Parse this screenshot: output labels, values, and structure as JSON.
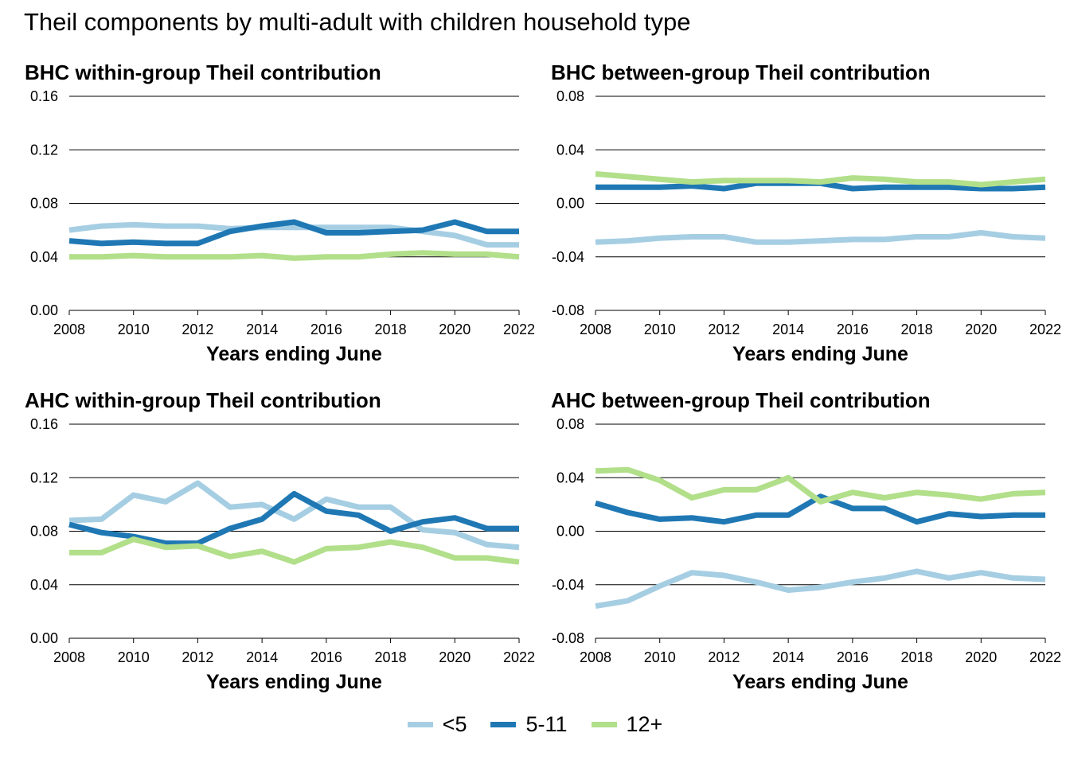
{
  "title": "Theil components by multi-adult with children household type",
  "colors": {
    "lt5": "#a6cee3",
    "5to11": "#1f78b4",
    "12plus": "#b2df8a"
  },
  "legend": [
    {
      "label": "<5",
      "color": "#a6cee3"
    },
    {
      "label": "5-11",
      "color": "#1f78b4"
    },
    {
      "label": "12+",
      "color": "#b2df8a"
    }
  ],
  "chart_data": [
    {
      "type": "line",
      "title": "BHC within-group Theil contribution",
      "xlabel": "Years ending June",
      "ylabel": "",
      "x": [
        2008,
        2009,
        2010,
        2011,
        2012,
        2013,
        2014,
        2015,
        2016,
        2017,
        2018,
        2019,
        2020,
        2021,
        2022
      ],
      "xticks": [
        "2008",
        "2010",
        "2012",
        "2014",
        "2016",
        "2018",
        "2020",
        "2022"
      ],
      "ylim": [
        0,
        0.16
      ],
      "yticks": [
        "0.00",
        "0.04",
        "0.08",
        "0.12",
        "0.16"
      ],
      "grid": "horizontal",
      "series": [
        {
          "name": "<5",
          "values": [
            0.06,
            0.063,
            0.064,
            0.063,
            0.063,
            0.061,
            0.062,
            0.062,
            0.062,
            0.062,
            0.062,
            0.059,
            0.056,
            0.049,
            0.049
          ]
        },
        {
          "name": "5-11",
          "values": [
            0.052,
            0.05,
            0.051,
            0.05,
            0.05,
            0.059,
            0.063,
            0.066,
            0.058,
            0.058,
            0.059,
            0.06,
            0.066,
            0.059,
            0.059
          ]
        },
        {
          "name": "12+",
          "values": [
            0.04,
            0.04,
            0.041,
            0.04,
            0.04,
            0.04,
            0.041,
            0.039,
            0.04,
            0.04,
            0.042,
            0.043,
            0.042,
            0.042,
            0.04
          ]
        }
      ]
    },
    {
      "type": "line",
      "title": "BHC between-group Theil contribution",
      "xlabel": "Years ending June",
      "ylabel": "",
      "x": [
        2008,
        2009,
        2010,
        2011,
        2012,
        2013,
        2014,
        2015,
        2016,
        2017,
        2018,
        2019,
        2020,
        2021,
        2022
      ],
      "xticks": [
        "2008",
        "2010",
        "2012",
        "2014",
        "2016",
        "2018",
        "2020",
        "2022"
      ],
      "ylim": [
        -0.08,
        0.08
      ],
      "yticks": [
        "-0.08",
        "-0.04",
        "0.00",
        "0.04",
        "0.08"
      ],
      "grid": "horizontal",
      "series": [
        {
          "name": "<5",
          "values": [
            -0.029,
            -0.028,
            -0.026,
            -0.025,
            -0.025,
            -0.029,
            -0.029,
            -0.028,
            -0.027,
            -0.027,
            -0.025,
            -0.025,
            -0.022,
            -0.025,
            -0.026
          ]
        },
        {
          "name": "5-11",
          "values": [
            0.012,
            0.012,
            0.012,
            0.013,
            0.011,
            0.015,
            0.015,
            0.015,
            0.011,
            0.012,
            0.012,
            0.012,
            0.011,
            0.011,
            0.012
          ]
        },
        {
          "name": "12+",
          "values": [
            0.022,
            0.02,
            0.018,
            0.016,
            0.017,
            0.017,
            0.017,
            0.016,
            0.019,
            0.018,
            0.016,
            0.016,
            0.014,
            0.016,
            0.018
          ]
        }
      ]
    },
    {
      "type": "line",
      "title": "AHC within-group Theil contribution",
      "xlabel": "Years ending June",
      "ylabel": "",
      "x": [
        2008,
        2009,
        2010,
        2011,
        2012,
        2013,
        2014,
        2015,
        2016,
        2017,
        2018,
        2019,
        2020,
        2021,
        2022
      ],
      "xticks": [
        "2008",
        "2010",
        "2012",
        "2014",
        "2016",
        "2018",
        "2020",
        "2022"
      ],
      "ylim": [
        0,
        0.16
      ],
      "yticks": [
        "0.00",
        "0.04",
        "0.08",
        "0.12",
        "0.16"
      ],
      "grid": "horizontal",
      "series": [
        {
          "name": "<5",
          "values": [
            0.088,
            0.089,
            0.107,
            0.102,
            0.116,
            0.098,
            0.1,
            0.089,
            0.104,
            0.098,
            0.098,
            0.081,
            0.079,
            0.07,
            0.068
          ]
        },
        {
          "name": "5-11",
          "values": [
            0.085,
            0.079,
            0.076,
            0.071,
            0.071,
            0.082,
            0.089,
            0.108,
            0.095,
            0.092,
            0.08,
            0.087,
            0.09,
            0.082,
            0.082
          ]
        },
        {
          "name": "12+",
          "values": [
            0.064,
            0.064,
            0.074,
            0.068,
            0.069,
            0.061,
            0.065,
            0.057,
            0.067,
            0.068,
            0.072,
            0.068,
            0.06,
            0.06,
            0.057
          ]
        }
      ]
    },
    {
      "type": "line",
      "title": "AHC between-group Theil contribution",
      "xlabel": "Years ending June",
      "ylabel": "",
      "x": [
        2008,
        2009,
        2010,
        2011,
        2012,
        2013,
        2014,
        2015,
        2016,
        2017,
        2018,
        2019,
        2020,
        2021,
        2022
      ],
      "xticks": [
        "2008",
        "2010",
        "2012",
        "2014",
        "2016",
        "2018",
        "2020",
        "2022"
      ],
      "ylim": [
        -0.08,
        0.08
      ],
      "yticks": [
        "-0.08",
        "-0.04",
        "0.00",
        "0.04",
        "0.08"
      ],
      "grid": "horizontal",
      "series": [
        {
          "name": "<5",
          "values": [
            -0.056,
            -0.052,
            -0.041,
            -0.031,
            -0.033,
            -0.038,
            -0.044,
            -0.042,
            -0.038,
            -0.035,
            -0.03,
            -0.035,
            -0.031,
            -0.035,
            -0.036
          ]
        },
        {
          "name": "5-11",
          "values": [
            0.021,
            0.014,
            0.009,
            0.01,
            0.007,
            0.012,
            0.012,
            0.026,
            0.017,
            0.017,
            0.007,
            0.013,
            0.011,
            0.012,
            0.012
          ]
        },
        {
          "name": "12+",
          "values": [
            0.045,
            0.046,
            0.038,
            0.025,
            0.031,
            0.031,
            0.04,
            0.022,
            0.029,
            0.025,
            0.029,
            0.027,
            0.024,
            0.028,
            0.029
          ]
        }
      ]
    }
  ]
}
